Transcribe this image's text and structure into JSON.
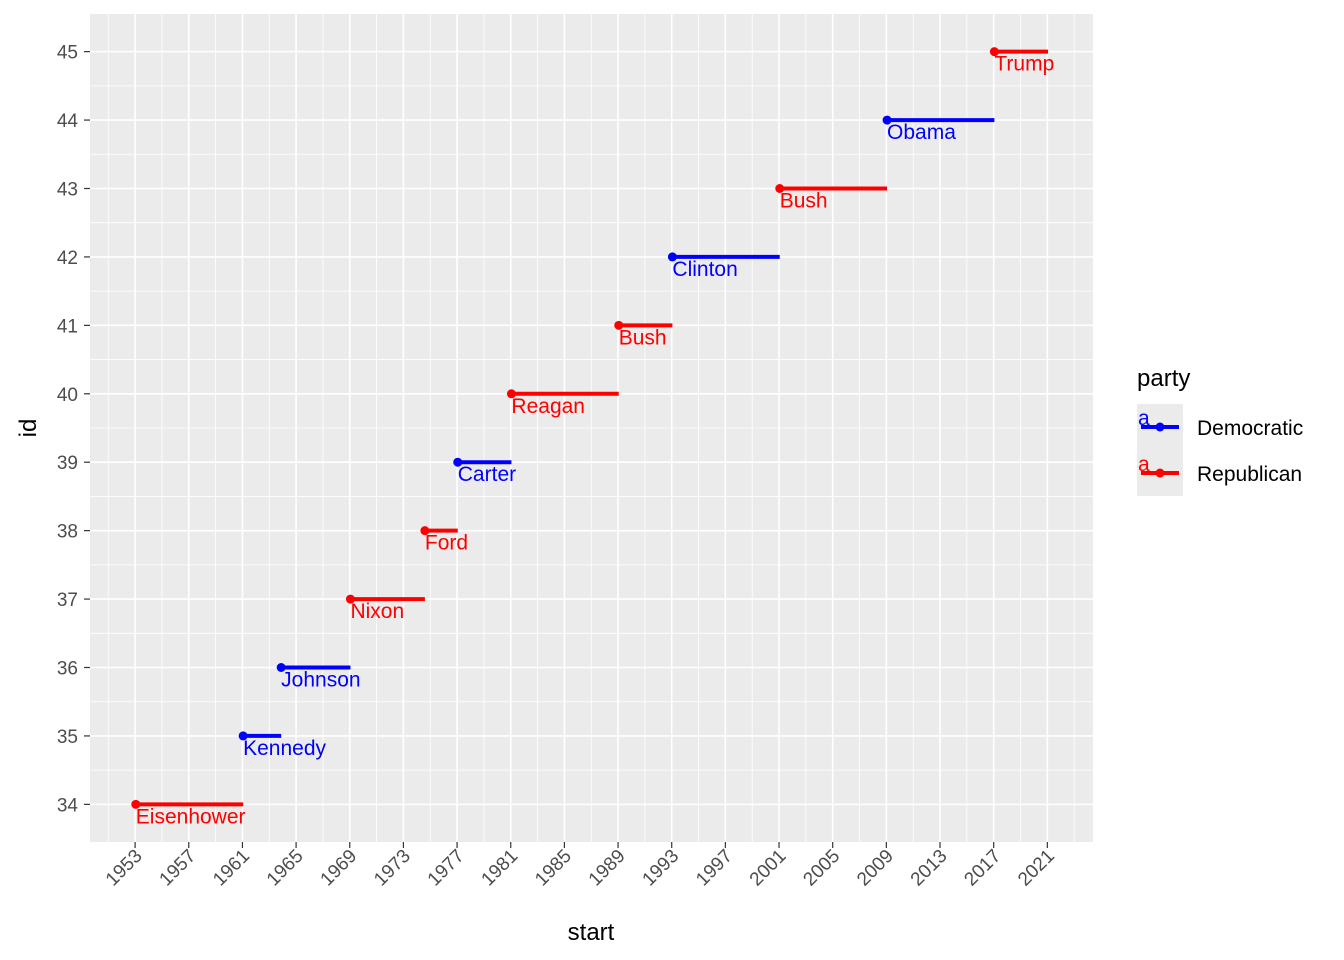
{
  "chart_data": {
    "type": "line",
    "xlabel": "start",
    "ylabel": "id",
    "x_ticks": [
      "1953",
      "1957",
      "1961",
      "1965",
      "1969",
      "1973",
      "1977",
      "1981",
      "1985",
      "1989",
      "1993",
      "1997",
      "2001",
      "2005",
      "2009",
      "2013",
      "2017",
      "2021"
    ],
    "y_ticks": [
      34,
      35,
      36,
      37,
      38,
      39,
      40,
      41,
      42,
      43,
      44,
      45
    ],
    "xlim": [
      "1949-08-22",
      "2024-05-28"
    ],
    "ylim": [
      33.45,
      45.55
    ],
    "grid": true,
    "legend": {
      "title": "party",
      "position": "right",
      "entries": [
        {
          "label": "Democratic",
          "color": "#0000ff",
          "key_text": "a"
        },
        {
          "label": "Republican",
          "color": "#ff0000",
          "key_text": "a"
        }
      ]
    },
    "segments": [
      {
        "id": 34,
        "name": "Eisenhower",
        "start": "1953-01-20",
        "end": "1961-01-20",
        "party": "Republican"
      },
      {
        "id": 35,
        "name": "Kennedy",
        "start": "1961-01-20",
        "end": "1963-11-22",
        "party": "Democratic"
      },
      {
        "id": 36,
        "name": "Johnson",
        "start": "1963-11-22",
        "end": "1969-01-20",
        "party": "Democratic"
      },
      {
        "id": 37,
        "name": "Nixon",
        "start": "1969-01-20",
        "end": "1974-08-09",
        "party": "Republican"
      },
      {
        "id": 38,
        "name": "Ford",
        "start": "1974-08-09",
        "end": "1977-01-20",
        "party": "Republican"
      },
      {
        "id": 39,
        "name": "Carter",
        "start": "1977-01-20",
        "end": "1981-01-20",
        "party": "Democratic"
      },
      {
        "id": 40,
        "name": "Reagan",
        "start": "1981-01-20",
        "end": "1989-01-20",
        "party": "Republican"
      },
      {
        "id": 41,
        "name": "Bush",
        "start": "1989-01-20",
        "end": "1993-01-20",
        "party": "Republican"
      },
      {
        "id": 42,
        "name": "Clinton",
        "start": "1993-01-20",
        "end": "2001-01-20",
        "party": "Democratic"
      },
      {
        "id": 43,
        "name": "Bush",
        "start": "2001-01-20",
        "end": "2009-01-20",
        "party": "Republican"
      },
      {
        "id": 44,
        "name": "Obama",
        "start": "2009-01-20",
        "end": "2017-01-20",
        "party": "Democratic"
      },
      {
        "id": 45,
        "name": "Trump",
        "start": "2017-01-20",
        "end": "2021-01-20",
        "party": "Republican"
      }
    ]
  }
}
